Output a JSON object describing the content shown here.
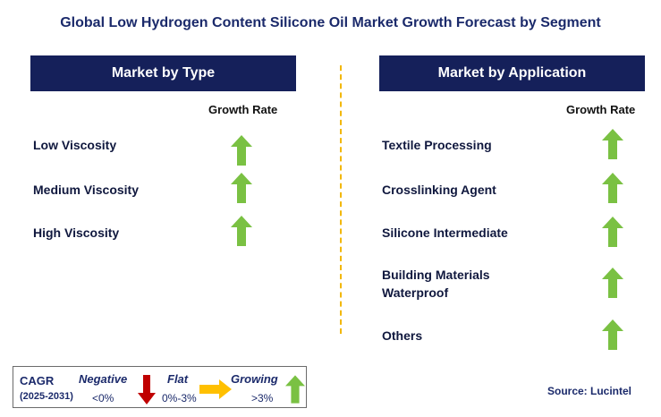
{
  "title": "Global Low Hydrogen Content Silicone Oil Market Growth Forecast by Segment",
  "left_panel": {
    "header": "Market by Type",
    "column_header": "Growth Rate",
    "items": [
      {
        "label": "Low Viscosity",
        "trend": "growing"
      },
      {
        "label": "Medium Viscosity",
        "trend": "growing"
      },
      {
        "label": "High Viscosity",
        "trend": "growing"
      }
    ]
  },
  "right_panel": {
    "header": "Market by Application",
    "column_header": "Growth Rate",
    "items": [
      {
        "label": "Textile Processing",
        "trend": "growing"
      },
      {
        "label": "Crosslinking Agent",
        "trend": "growing"
      },
      {
        "label": "Silicone Intermediate",
        "trend": "growing"
      },
      {
        "label": "Building Materials Waterproof",
        "trend": "growing"
      },
      {
        "label": "Others",
        "trend": "growing"
      }
    ]
  },
  "legend": {
    "cagr_label": "CAGR",
    "period": "(2025-2031)",
    "negative_label": "Negative",
    "negative_value": "<0%",
    "flat_label": "Flat",
    "flat_value": "0%-3%",
    "growing_label": "Growing",
    "growing_value": ">3%"
  },
  "source": "Source: Lucintel",
  "colors": {
    "header_bg": "#15205a",
    "growing_arrow": "#7ac143",
    "negative_arrow": "#c00000",
    "flat_arrow": "#ffc000",
    "divider": "#f2b705"
  }
}
